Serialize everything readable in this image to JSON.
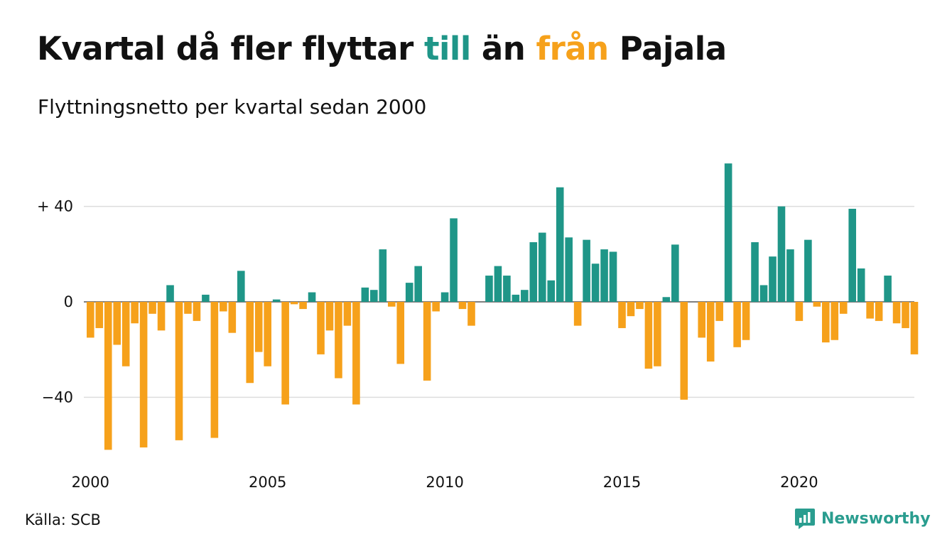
{
  "title": {
    "part1": "Kvartal då fler flyttar ",
    "highlight_in": "till",
    "part2": " än ",
    "highlight_out": "från",
    "part3": " Pajala"
  },
  "subtitle": "Flyttningsnetto per kvartal sedan 2000",
  "source": "Källa: SCB",
  "brand": {
    "name": "Newsworthy",
    "icon": "newsworthy-logo-icon"
  },
  "colors": {
    "positive": "#1f9688",
    "negative": "#f6a11b",
    "grid": "#dddddd",
    "axis": "#333333"
  },
  "chart_data": {
    "type": "bar",
    "title": "Kvartal då fler flyttar till än från Pajala",
    "subtitle": "Flyttningsnetto per kvartal sedan 2000",
    "x_start_year": 2000,
    "periods_per_year": 4,
    "values": [
      -15,
      -11,
      -62,
      -18,
      -27,
      -9,
      -61,
      -5,
      -12,
      7,
      -58,
      -5,
      -8,
      3,
      -57,
      -4,
      -13,
      13,
      -34,
      -21,
      -27,
      1,
      -43,
      -1,
      -3,
      4,
      -22,
      -12,
      -32,
      -10,
      -43,
      6,
      5,
      22,
      -2,
      -26,
      8,
      15,
      -33,
      -4,
      4,
      35,
      -3,
      -10,
      0,
      11,
      15,
      11,
      3,
      5,
      25,
      29,
      9,
      48,
      27,
      -10,
      26,
      16,
      22,
      21,
      -11,
      -6,
      -3,
      -28,
      -27,
      2,
      24,
      -41,
      0,
      -15,
      -25,
      -8,
      58,
      -19,
      -16,
      25,
      7,
      19,
      40,
      22,
      -8,
      26,
      -2,
      -17,
      -16,
      -5,
      39,
      14,
      -7,
      -8,
      11,
      -9,
      -11,
      -22
    ],
    "y_ticks": [
      {
        "value": 40,
        "label": "+ 40"
      },
      {
        "value": 0,
        "label": "0"
      },
      {
        "value": -40,
        "label": "−40"
      }
    ],
    "x_ticks": [
      {
        "year": 2000,
        "label": "2000"
      },
      {
        "year": 2005,
        "label": "2005"
      },
      {
        "year": 2010,
        "label": "2010"
      },
      {
        "year": 2015,
        "label": "2015"
      },
      {
        "year": 2020,
        "label": "2020"
      }
    ],
    "ylim": [
      -65,
      62
    ],
    "grid": true,
    "legend": "none"
  }
}
